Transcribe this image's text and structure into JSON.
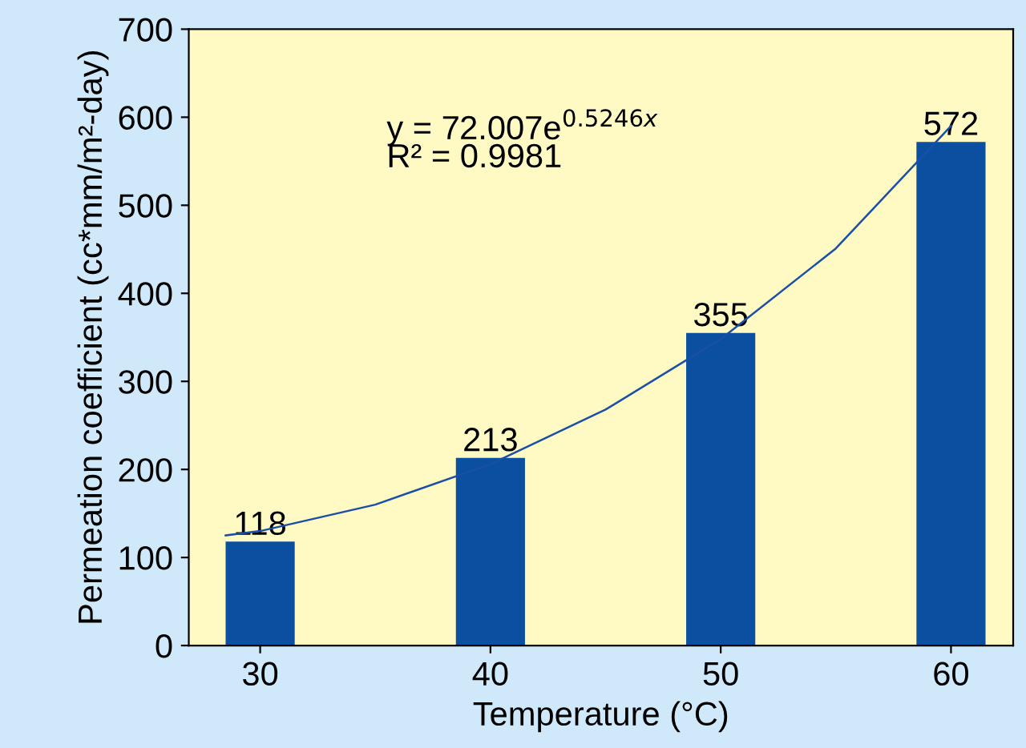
{
  "chart_data": {
    "type": "bar",
    "xlabel": "Temperature (°C)",
    "ylabel": "Permeation coefficient (cc*mm/m²-day)",
    "x": [
      30,
      40,
      50,
      60
    ],
    "values": [
      118,
      213,
      355,
      572
    ],
    "color": "#0a4fa0",
    "value_labels": [
      "118",
      "213",
      "355",
      "572"
    ],
    "series": [
      {
        "type": "line",
        "color": "#1a4fa8",
        "x": [
          28.5,
          30,
          35,
          40,
          45,
          50,
          55,
          60
        ],
        "values": [
          125,
          130,
          160,
          206,
          268,
          348,
          451,
          590
        ]
      }
    ],
    "annotations": [
      "y = 72.007e$^{0.5246x}$",
      "R² = 0.9981"
    ],
    "xlim": [
      26.9,
      62.7
    ],
    "xticks": [
      30,
      40,
      50,
      60
    ],
    "ylim": [
      0,
      700
    ],
    "yticks": [
      0,
      100,
      200,
      300,
      400,
      500,
      600,
      700
    ],
    "grid": false,
    "legend": false
  }
}
